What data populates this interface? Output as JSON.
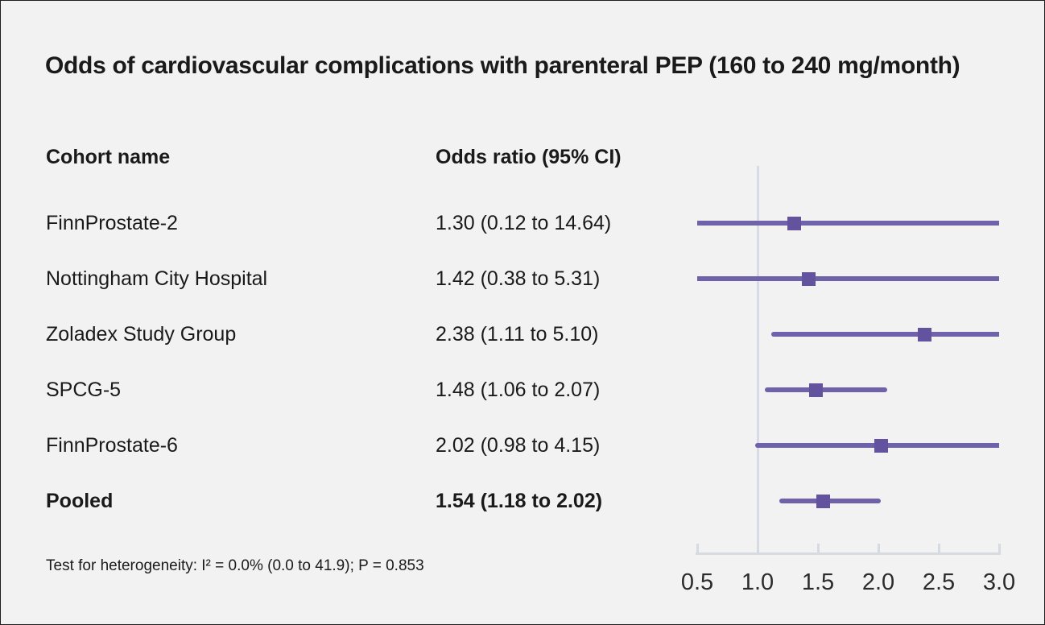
{
  "chart_data": {
    "type": "forest",
    "title": "Odds of cardiovascular complications with parenteral PEP (160 to 240 mg/month)",
    "columns": {
      "cohort": "Cohort name",
      "odds_ratio": "Odds ratio (95% CI)"
    },
    "rows": [
      {
        "name": "FinnProstate-2",
        "or": 1.3,
        "ci_low": 0.12,
        "ci_high": 14.64,
        "or_label": "1.30 (0.12 to 14.64)",
        "bold": false
      },
      {
        "name": "Nottingham City Hospital",
        "or": 1.42,
        "ci_low": 0.38,
        "ci_high": 5.31,
        "or_label": "1.42 (0.38 to 5.31)",
        "bold": false
      },
      {
        "name": "Zoladex Study Group",
        "or": 2.38,
        "ci_low": 1.11,
        "ci_high": 5.1,
        "or_label": "2.38 (1.11 to 5.10)",
        "bold": false
      },
      {
        "name": "SPCG-5",
        "or": 1.48,
        "ci_low": 1.06,
        "ci_high": 2.07,
        "or_label": "1.48 (1.06 to 2.07)",
        "bold": false
      },
      {
        "name": "FinnProstate-6",
        "or": 2.02,
        "ci_low": 0.98,
        "ci_high": 4.15,
        "or_label": "2.02 (0.98 to 4.15)",
        "bold": false
      },
      {
        "name": "Pooled",
        "or": 1.54,
        "ci_low": 1.18,
        "ci_high": 2.02,
        "or_label": "1.54 (1.18 to 2.02)",
        "bold": true
      }
    ],
    "x_axis": {
      "scale": "linear",
      "min": 0.5,
      "max": 3.0,
      "tick_values": [
        0.5,
        1.0,
        1.5,
        2.0,
        2.5,
        3.0
      ],
      "tick_labels": [
        "0.5",
        "1.0",
        "1.5",
        "2.0",
        "2.5",
        "3.0"
      ],
      "reference_line": 1.0
    },
    "footnote": "Test for heterogeneity: I² = 0.0% (0.0 to 41.9); P = 0.853",
    "colors": {
      "background": "#f2f2f2",
      "text": "#1a1a1a",
      "ci_line": "#6f61aa",
      "marker": "#63539f",
      "axis": "#d6dae1",
      "reference_line": "#d8dbe3"
    }
  }
}
